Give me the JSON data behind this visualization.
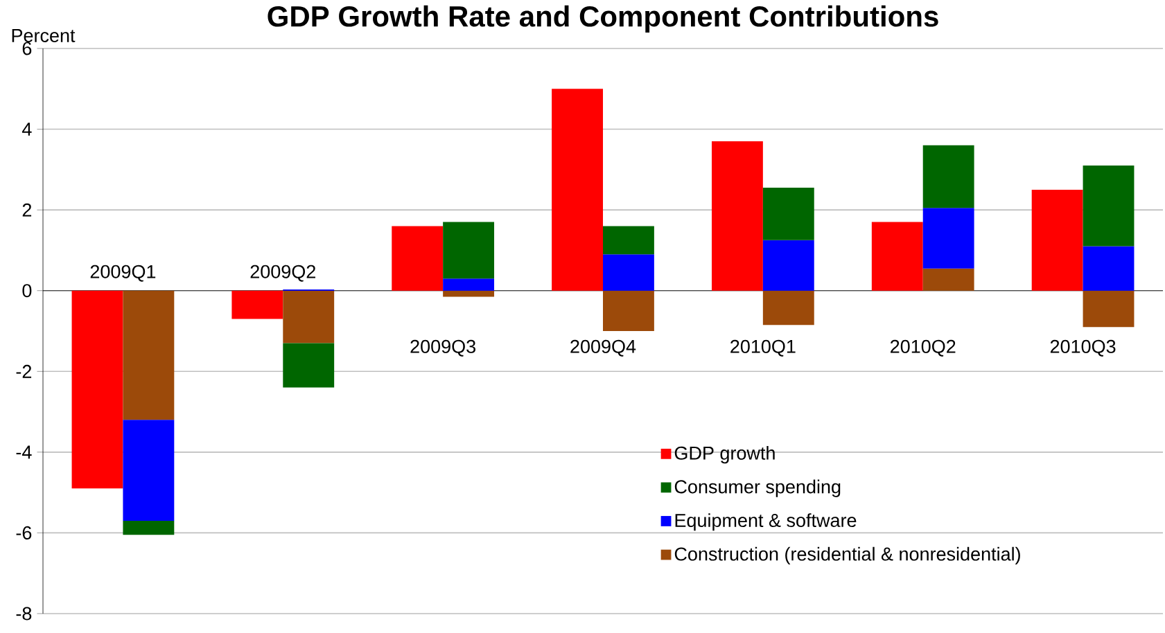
{
  "chart_data": {
    "type": "bar",
    "title": "GDP Growth Rate and Component Contributions",
    "ylabel": "Percent",
    "categories": [
      "2009Q1",
      "2009Q2",
      "2009Q3",
      "2009Q4",
      "2010Q1",
      "2010Q2",
      "2010Q3"
    ],
    "series": [
      {
        "name": "GDP growth",
        "color": "#ff0000",
        "values": [
          -4.9,
          -0.7,
          1.6,
          5.0,
          3.7,
          1.7,
          2.5
        ]
      },
      {
        "name": "Construction (residential & nonresidential)",
        "color": "#9c4a0a",
        "values": [
          -3.2,
          -1.3,
          -0.15,
          -1.0,
          -0.85,
          0.55,
          -0.9
        ],
        "base": [
          0,
          0,
          0,
          0,
          0,
          0,
          0
        ]
      },
      {
        "name": "Equipment & software",
        "color": "#0000ff",
        "values": [
          -2.5,
          0.03,
          0.3,
          0.9,
          1.25,
          1.5,
          1.1
        ],
        "base": [
          -3.2,
          0,
          0,
          0,
          0,
          0.55,
          0
        ]
      },
      {
        "name": "Consumer spending",
        "color": "#006600",
        "values": [
          -0.35,
          -1.1,
          1.4,
          0.7,
          1.3,
          1.55,
          2.0
        ],
        "base": [
          -5.7,
          -1.3,
          0.3,
          0.9,
          1.25,
          2.05,
          1.1
        ]
      }
    ],
    "ylim": [
      -8,
      6
    ],
    "yticks": [
      -8,
      -6,
      -4,
      -2,
      0,
      2,
      4,
      6
    ],
    "grid": "y",
    "legend": "bottom right"
  }
}
